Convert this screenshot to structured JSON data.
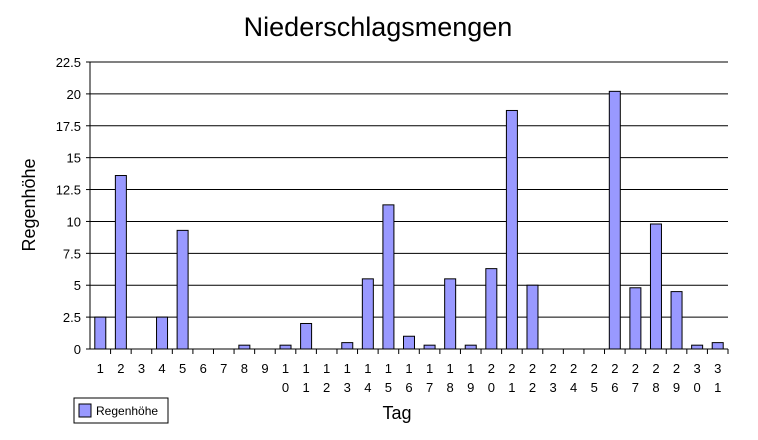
{
  "chart_data": {
    "type": "bar",
    "title": "Niederschlagsmengen",
    "xlabel": "Tag",
    "ylabel": "Regenhöhe",
    "ylim": [
      0,
      22.5
    ],
    "yticks": [
      "0",
      "2.5",
      "5",
      "7.5",
      "10",
      "12.5",
      "15",
      "17.5",
      "20",
      "22.5"
    ],
    "grid": true,
    "legend_position": "bottom-left",
    "categories": [
      "1",
      "2",
      "3",
      "4",
      "5",
      "6",
      "7",
      "8",
      "9",
      "10",
      "11",
      "12",
      "13",
      "14",
      "15",
      "16",
      "17",
      "18",
      "19",
      "20",
      "21",
      "22",
      "23",
      "24",
      "25",
      "26",
      "27",
      "28",
      "29",
      "30",
      "31"
    ],
    "series": [
      {
        "name": "Regenhöhe",
        "color": "#9999ff",
        "values": [
          2.5,
          13.6,
          0,
          2.5,
          9.3,
          0,
          0,
          0.3,
          0,
          0.3,
          2.0,
          0,
          0.5,
          5.5,
          11.3,
          1.0,
          0.3,
          5.5,
          0.3,
          6.3,
          18.7,
          5.0,
          0,
          0,
          0,
          20.2,
          4.8,
          9.8,
          4.5,
          0.3,
          0.5
        ]
      }
    ]
  }
}
